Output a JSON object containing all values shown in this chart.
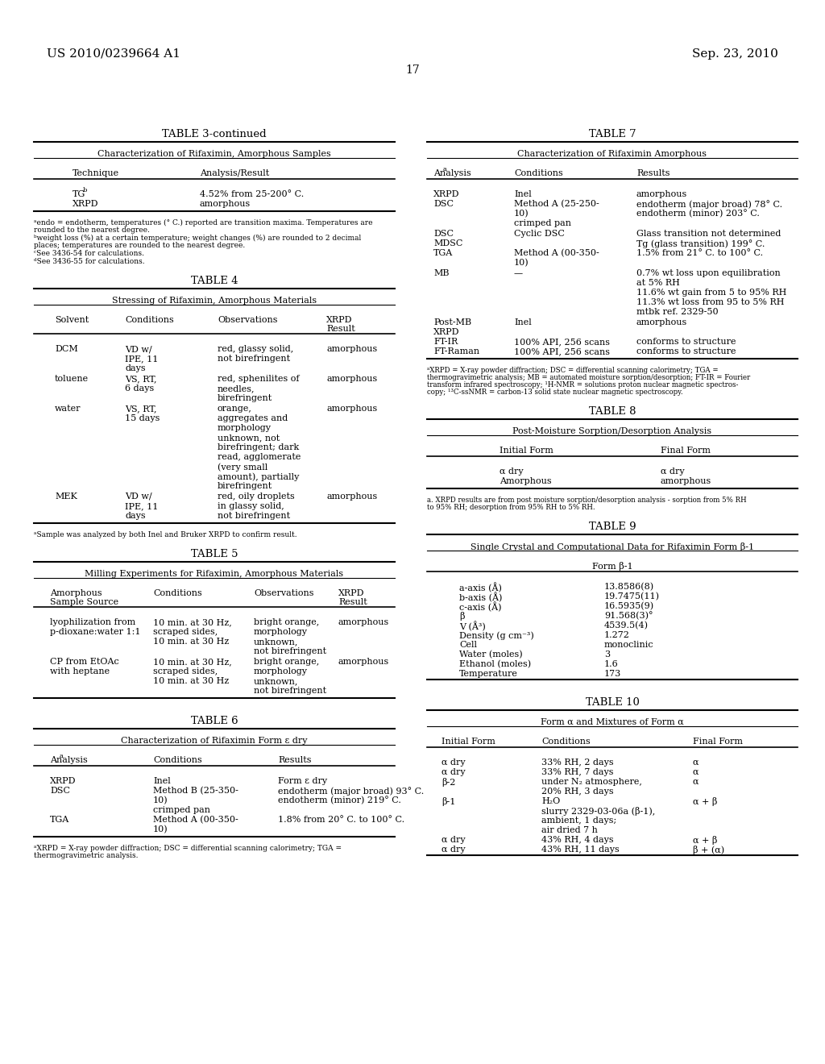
{
  "header_left": "US 2010/0239664 A1",
  "header_right": "Sep. 23, 2010",
  "page_number": "17",
  "background_color": "#ffffff"
}
